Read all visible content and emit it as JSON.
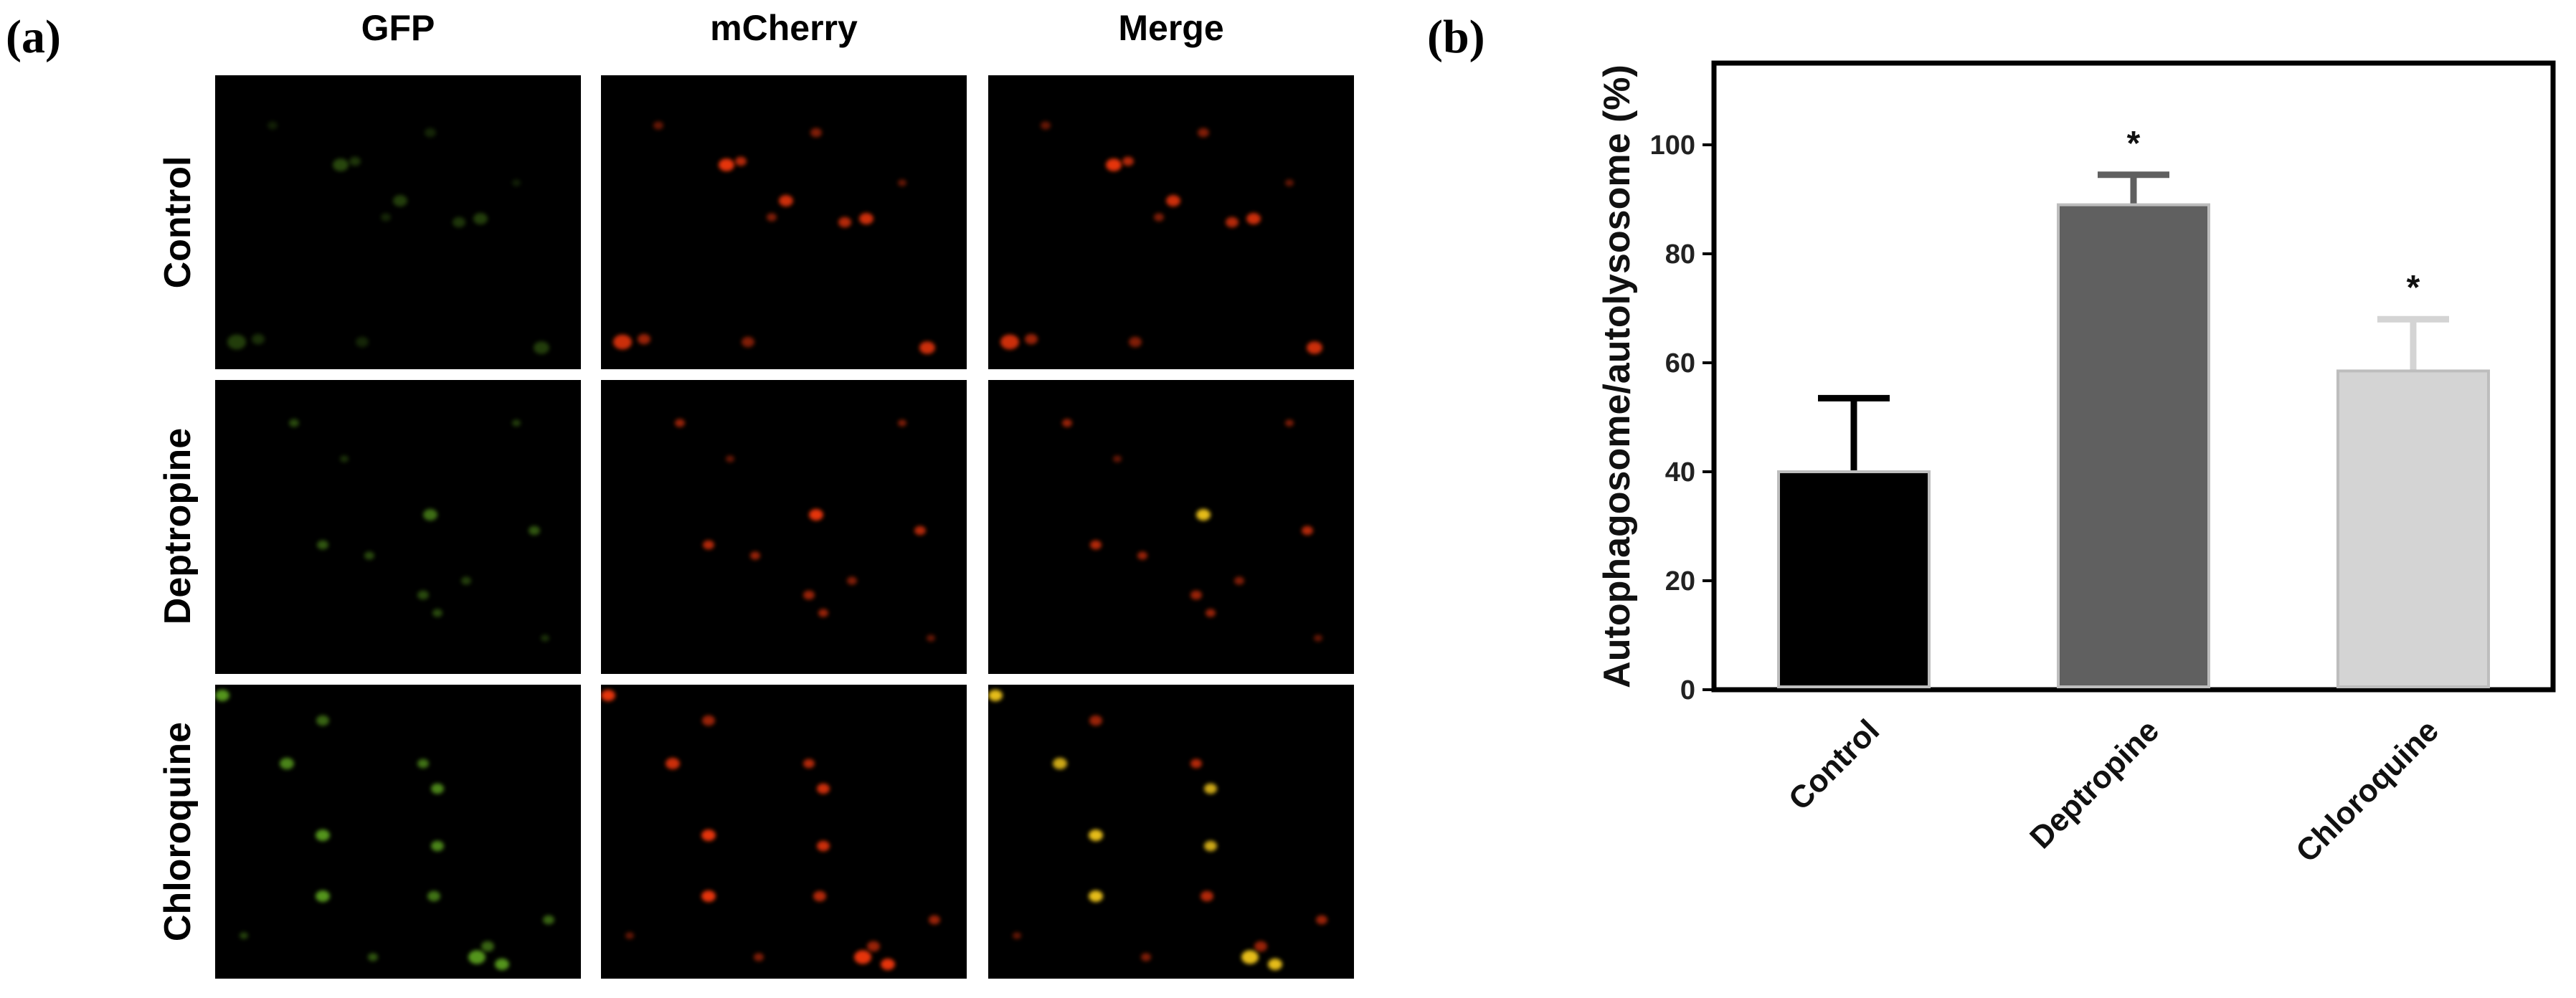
{
  "panel_a": {
    "label": "(a)",
    "columns": [
      "GFP",
      "mCherry",
      "Merge"
    ],
    "rows": [
      "Control",
      "Deptropine",
      "Chloroquine"
    ]
  },
  "panel_b": {
    "label": "(b)"
  },
  "colors": {
    "gfp": "#7ddc2a",
    "mcherry": "#ff3a10",
    "merge_overlap": "#ffd21a",
    "bar_control": "#000000",
    "bar_deptropine": "#606060",
    "bar_chloroquine": "#d4d4d4"
  },
  "chart_data": {
    "type": "bar",
    "title": "",
    "xlabel": "",
    "ylabel": "Autophagosome/autolysosome (%)",
    "categories": [
      "Control",
      "Deptropine",
      "Chloroquine"
    ],
    "values": [
      40,
      89,
      58.5
    ],
    "error_plus": [
      13.5,
      5.5,
      9.5
    ],
    "significance": [
      "",
      "*",
      "*"
    ],
    "ylim": [
      0,
      115
    ],
    "yticks": [
      0,
      20,
      40,
      60,
      80,
      100
    ],
    "grid": false,
    "legend": "none"
  }
}
